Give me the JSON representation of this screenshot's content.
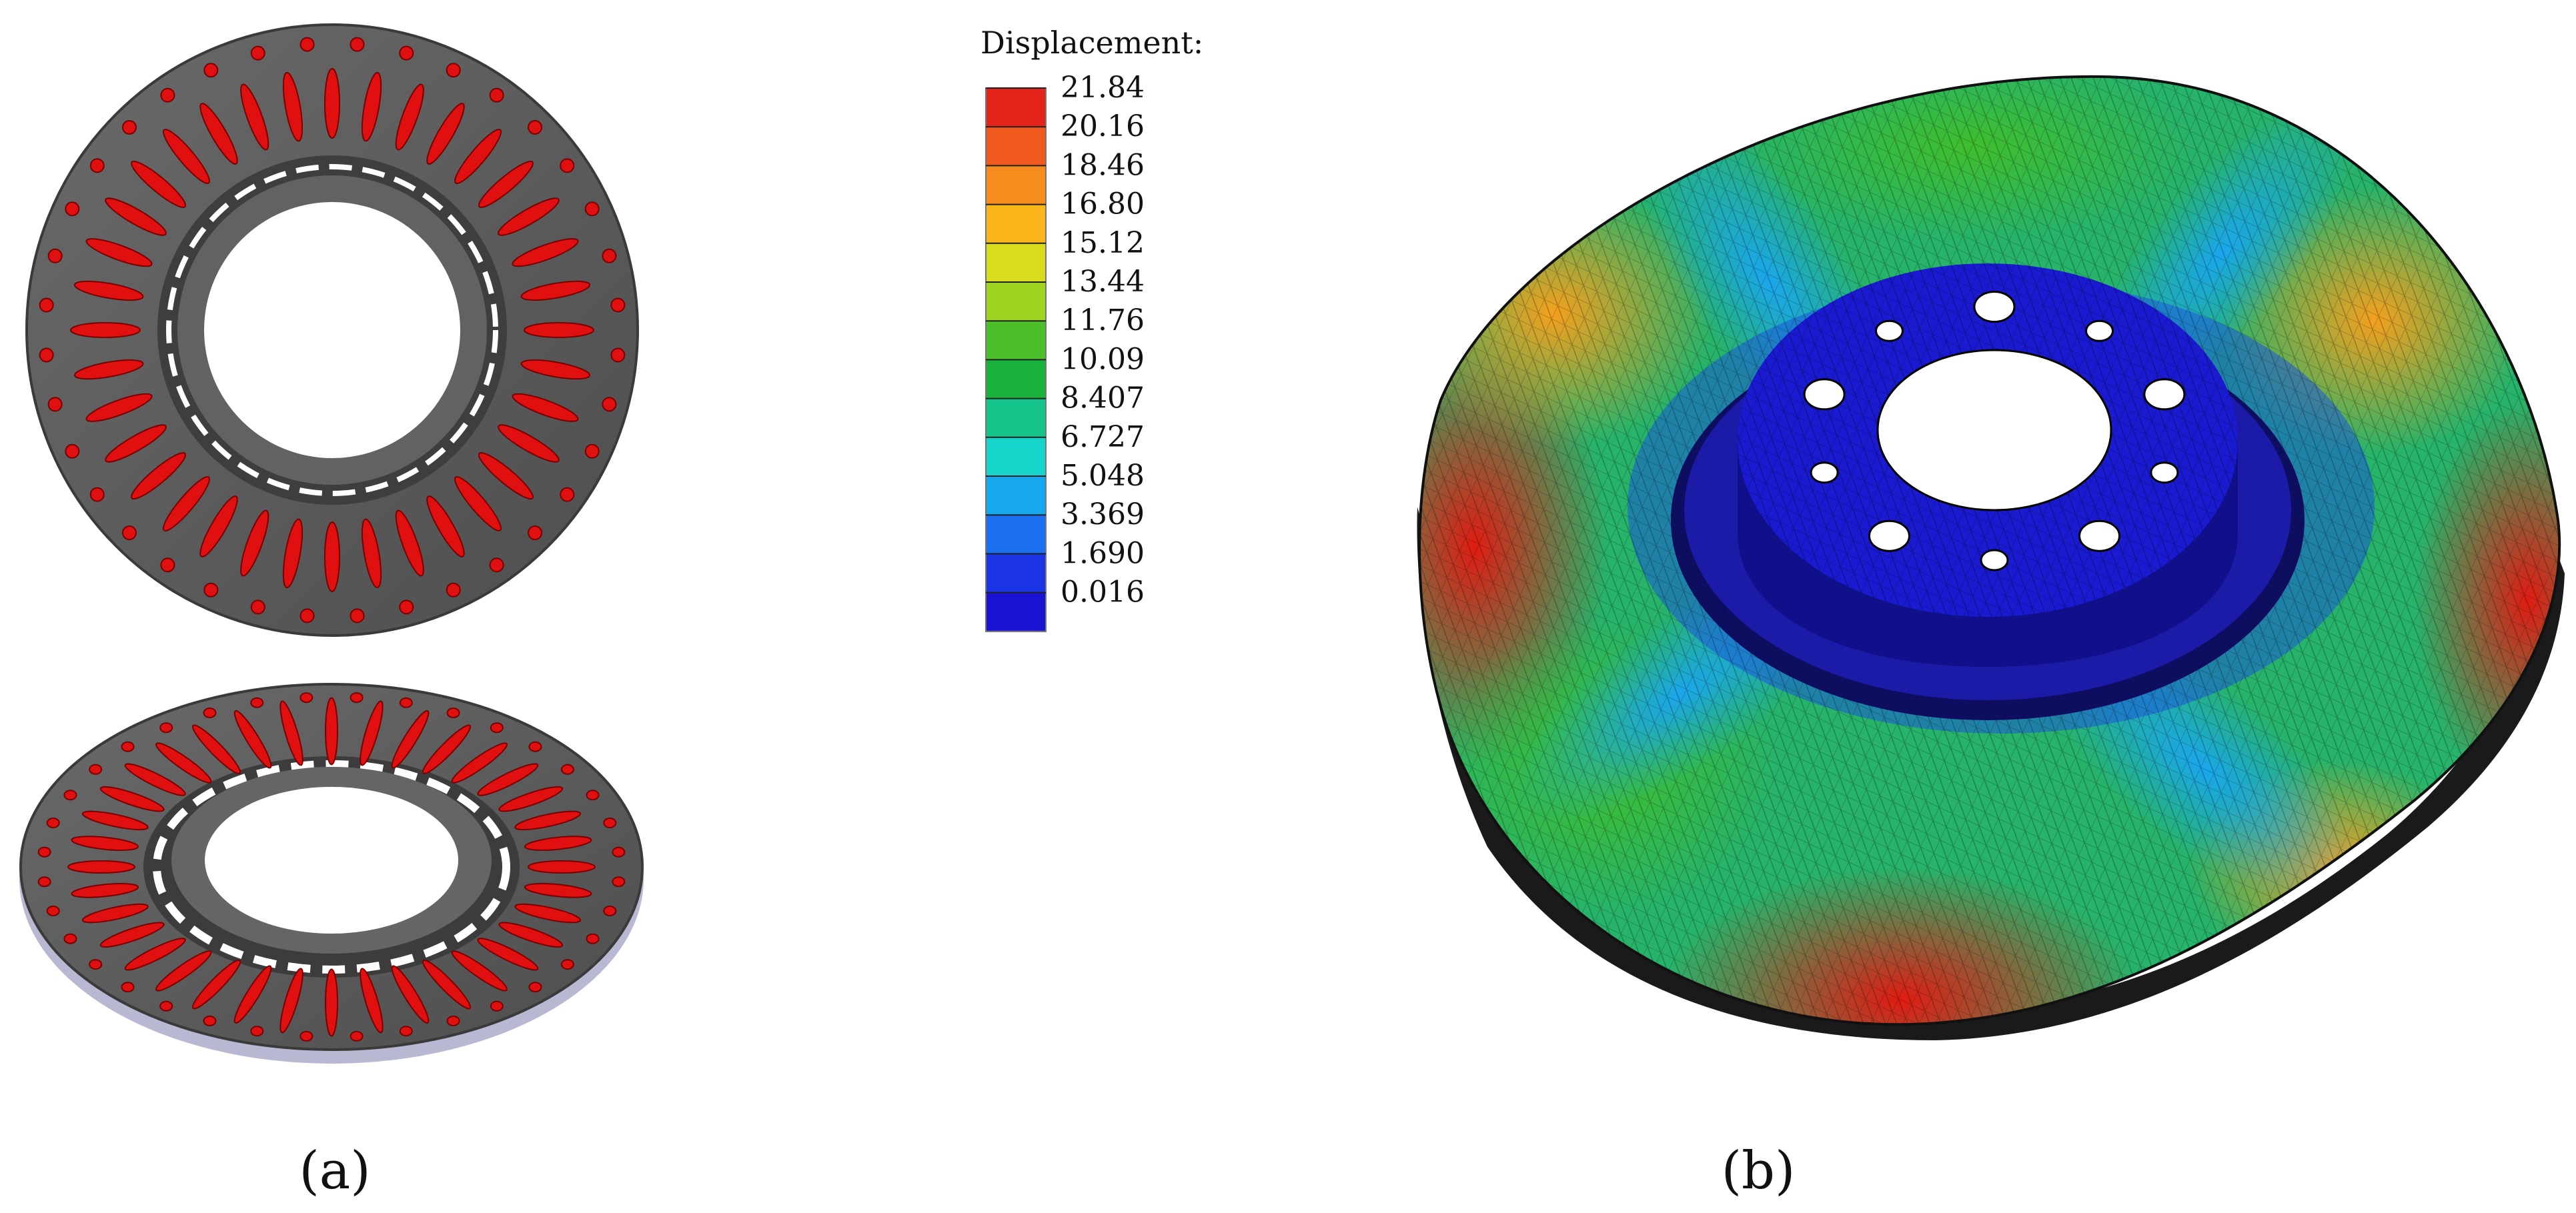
{
  "legend": {
    "title": "Displacement:",
    "values": [
      "21.84",
      "20.16",
      "18.46",
      "16.80",
      "15.12",
      "13.44",
      "11.76",
      "10.09",
      "8.407",
      "6.727",
      "5.048",
      "3.369",
      "1.690",
      "0.016"
    ],
    "colors": [
      "#e2231a",
      "#f05a1e",
      "#f78c1e",
      "#fbb61a",
      "#d8dc1c",
      "#9ed31f",
      "#4cc02a",
      "#18b23a",
      "#14c48a",
      "#16d6cc",
      "#16a8ee",
      "#1a70f0",
      "#1a34e6",
      "#1a12d2"
    ]
  },
  "panels": {
    "a_label": "(a)",
    "b_label": "(b)"
  },
  "colors": {
    "disc_gray": "#5d5d5d",
    "vent_red": "#e01010",
    "hub_blue": "#1616c8"
  }
}
